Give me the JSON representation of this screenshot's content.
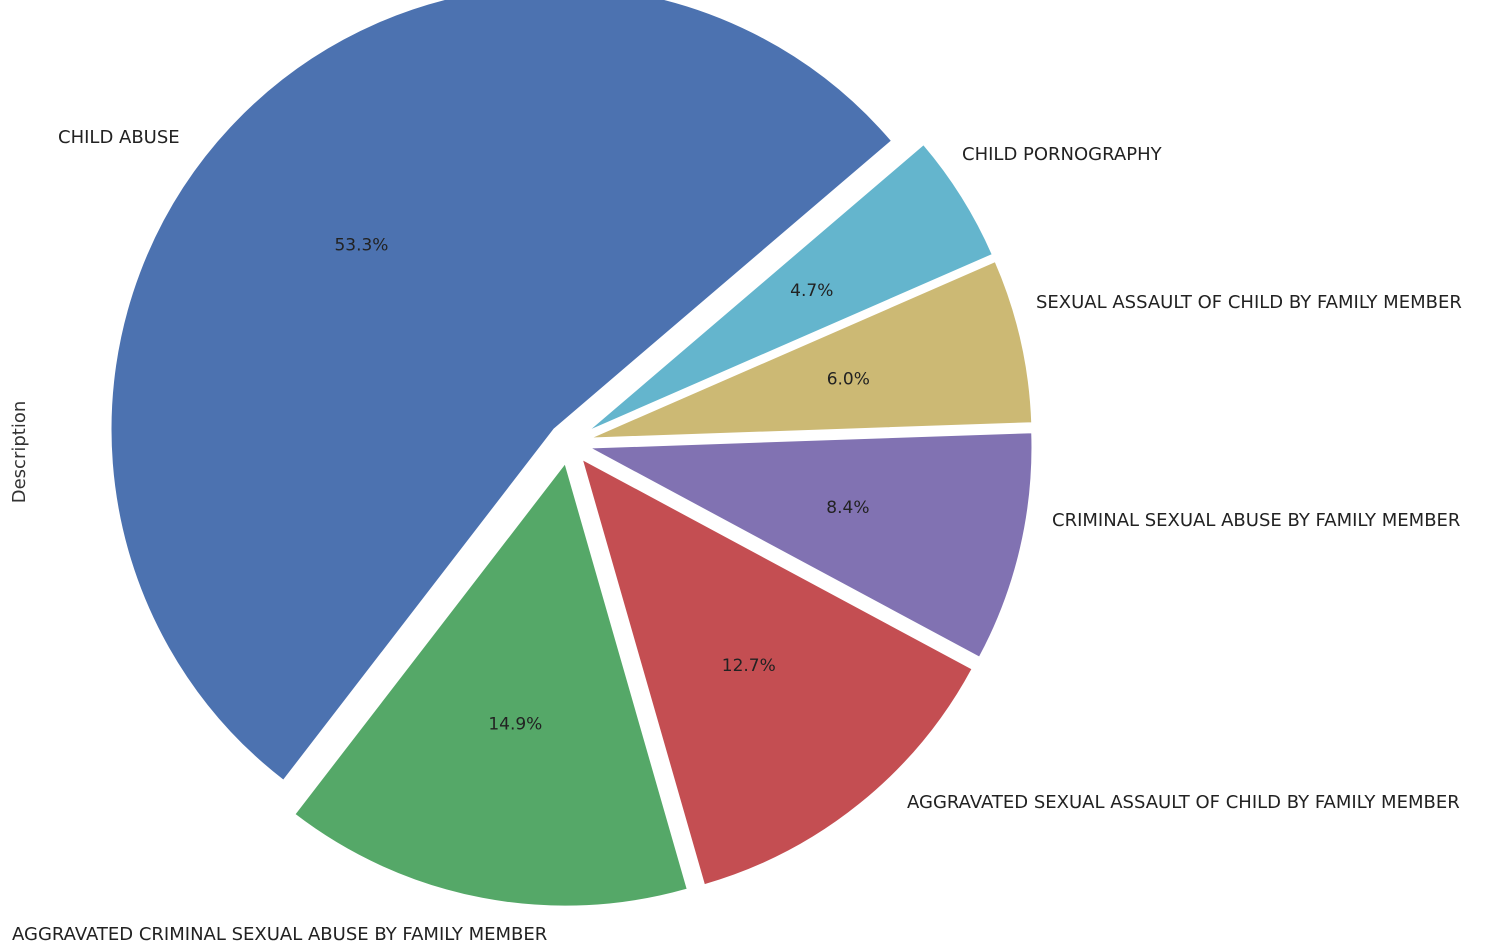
{
  "chart_data": {
    "type": "pie",
    "ylabel": "Description",
    "start_angle_deg": 40.5,
    "direction": "counterclockwise",
    "slices": [
      {
        "label": "CHILD ABUSE",
        "value": 53.3,
        "pct_label": "53.3%",
        "color": "#4C72B0",
        "exploded": true
      },
      {
        "label": "AGGRAVATED CRIMINAL SEXUAL ABUSE BY FAMILY MEMBER",
        "value": 14.9,
        "pct_label": "14.9%",
        "color": "#55A868",
        "exploded": true
      },
      {
        "label": "AGGRAVATED SEXUAL ASSAULT OF CHILD BY FAMILY MEMBER",
        "value": 12.7,
        "pct_label": "12.7%",
        "color": "#C44E52",
        "exploded": true
      },
      {
        "label": "CRIMINAL SEXUAL ABUSE BY FAMILY MEMBER",
        "value": 8.4,
        "pct_label": "8.4%",
        "color": "#8172B2",
        "exploded": true
      },
      {
        "label": "SEXUAL ASSAULT OF CHILD BY FAMILY MEMBER",
        "value": 6.0,
        "pct_label": "6.0%",
        "color": "#CCB974",
        "exploded": true
      },
      {
        "label": "CHILD PORNOGRAPHY",
        "value": 4.7,
        "pct_label": "4.7%",
        "color": "#64B5CD",
        "exploded": true
      }
    ]
  }
}
